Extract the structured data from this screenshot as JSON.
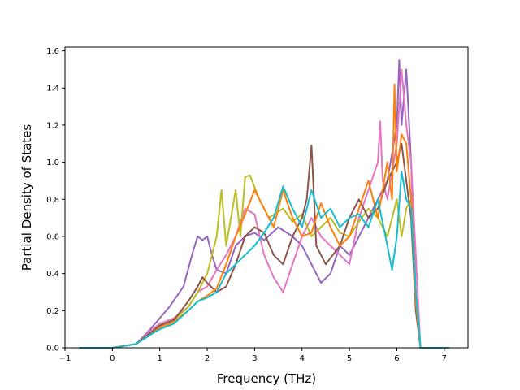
{
  "chart_data": {
    "type": "line",
    "title": "",
    "xlabel": "Frequency (THz)",
    "ylabel": "Partial Density of States",
    "xlim": [
      -1.0,
      7.5
    ],
    "ylim": [
      0.0,
      1.62
    ],
    "xticks": [
      -1,
      0,
      1,
      2,
      3,
      4,
      5,
      6,
      7
    ],
    "xtick_labels": [
      "−1",
      "0",
      "1",
      "2",
      "3",
      "4",
      "5",
      "6",
      "7"
    ],
    "yticks": [
      0.0,
      0.2,
      0.4,
      0.6,
      0.8,
      1.0,
      1.2,
      1.4,
      1.6
    ],
    "ytick_labels": [
      "0.0",
      "0.2",
      "0.4",
      "0.6",
      "0.8",
      "1.0",
      "1.2",
      "1.4",
      "1.6"
    ],
    "grid": false,
    "legend": "none",
    "series": [
      {
        "color": "#9467bd",
        "x": [
          -0.7,
          0.0,
          0.5,
          0.8,
          1.0,
          1.2,
          1.5,
          1.7,
          1.8,
          1.9,
          2.0,
          2.1,
          2.2,
          2.4,
          2.6,
          2.8,
          3.0,
          3.2,
          3.5,
          3.8,
          4.0,
          4.2,
          4.4,
          4.6,
          4.8,
          5.0,
          5.2,
          5.4,
          5.6,
          5.8,
          6.0,
          6.05,
          6.1,
          6.2,
          6.3,
          6.4,
          6.5,
          6.6,
          7.1
        ],
        "y": [
          0.0,
          0.0,
          0.02,
          0.1,
          0.16,
          0.22,
          0.33,
          0.52,
          0.6,
          0.58,
          0.6,
          0.5,
          0.42,
          0.4,
          0.55,
          0.6,
          0.62,
          0.58,
          0.65,
          0.6,
          0.55,
          0.45,
          0.35,
          0.4,
          0.55,
          0.5,
          0.6,
          0.7,
          0.8,
          0.9,
          1.2,
          1.55,
          1.2,
          1.5,
          1.0,
          0.3,
          0.0,
          0.0,
          0.0
        ]
      },
      {
        "color": "#e377c2",
        "x": [
          -0.7,
          0.0,
          0.5,
          0.8,
          1.0,
          1.3,
          1.6,
          1.8,
          2.0,
          2.2,
          2.4,
          2.6,
          2.8,
          3.0,
          3.2,
          3.4,
          3.6,
          3.8,
          4.0,
          4.2,
          4.4,
          4.6,
          4.8,
          5.0,
          5.2,
          5.4,
          5.6,
          5.65,
          5.7,
          5.8,
          6.0,
          6.1,
          6.2,
          6.3,
          6.4,
          6.5,
          6.6,
          7.1
        ],
        "y": [
          0.0,
          0.0,
          0.02,
          0.09,
          0.13,
          0.16,
          0.22,
          0.3,
          0.33,
          0.42,
          0.5,
          0.6,
          0.75,
          0.72,
          0.5,
          0.38,
          0.3,
          0.45,
          0.6,
          0.7,
          0.6,
          0.55,
          0.5,
          0.45,
          0.7,
          0.85,
          1.0,
          1.22,
          0.9,
          0.8,
          1.1,
          1.5,
          1.2,
          1.0,
          0.5,
          0.0,
          0.0,
          0.0
        ]
      },
      {
        "color": "#bcbd22",
        "x": [
          -0.7,
          0.0,
          0.5,
          0.8,
          1.0,
          1.3,
          1.6,
          1.8,
          2.0,
          2.2,
          2.3,
          2.4,
          2.6,
          2.7,
          2.8,
          2.9,
          3.1,
          3.3,
          3.6,
          3.8,
          4.0,
          4.2,
          4.4,
          4.6,
          4.8,
          5.0,
          5.2,
          5.4,
          5.6,
          5.8,
          6.0,
          6.1,
          6.2,
          6.3,
          6.4,
          6.5,
          6.6,
          7.1
        ],
        "y": [
          0.0,
          0.0,
          0.02,
          0.08,
          0.12,
          0.15,
          0.22,
          0.3,
          0.4,
          0.6,
          0.85,
          0.55,
          0.85,
          0.6,
          0.92,
          0.93,
          0.8,
          0.7,
          0.75,
          0.68,
          0.72,
          0.6,
          0.65,
          0.7,
          0.62,
          0.6,
          0.68,
          0.75,
          0.7,
          0.6,
          0.8,
          0.6,
          0.75,
          0.8,
          0.3,
          0.0,
          0.0,
          0.0
        ]
      },
      {
        "color": "#8c564b",
        "x": [
          -0.7,
          0.0,
          0.5,
          0.8,
          1.0,
          1.3,
          1.6,
          1.8,
          1.9,
          2.0,
          2.2,
          2.4,
          2.6,
          2.8,
          3.0,
          3.2,
          3.4,
          3.6,
          3.8,
          4.0,
          4.1,
          4.2,
          4.3,
          4.5,
          4.8,
          5.0,
          5.2,
          5.4,
          5.6,
          5.8,
          6.0,
          6.1,
          6.2,
          6.3,
          6.4,
          6.5,
          6.6,
          7.1
        ],
        "y": [
          0.0,
          0.0,
          0.02,
          0.08,
          0.12,
          0.15,
          0.25,
          0.33,
          0.38,
          0.35,
          0.3,
          0.33,
          0.45,
          0.6,
          0.65,
          0.62,
          0.5,
          0.45,
          0.6,
          0.7,
          0.8,
          1.09,
          0.55,
          0.45,
          0.55,
          0.7,
          0.8,
          0.7,
          0.75,
          0.9,
          1.0,
          1.1,
          0.9,
          0.7,
          0.2,
          0.0,
          0.0,
          0.0
        ]
      },
      {
        "color": "#ff7f0e",
        "x": [
          -0.7,
          0.0,
          0.5,
          0.8,
          1.0,
          1.3,
          1.6,
          1.8,
          2.0,
          2.2,
          2.4,
          2.6,
          2.8,
          3.0,
          3.2,
          3.4,
          3.6,
          3.8,
          4.0,
          4.2,
          4.4,
          4.6,
          4.8,
          5.0,
          5.2,
          5.4,
          5.6,
          5.8,
          5.9,
          5.95,
          6.0,
          6.1,
          6.2,
          6.3,
          6.4,
          6.5,
          6.6,
          7.1
        ],
        "y": [
          0.0,
          0.0,
          0.02,
          0.07,
          0.11,
          0.14,
          0.2,
          0.25,
          0.28,
          0.32,
          0.45,
          0.6,
          0.72,
          0.85,
          0.75,
          0.65,
          0.85,
          0.7,
          0.6,
          0.62,
          0.78,
          0.65,
          0.55,
          0.6,
          0.75,
          0.9,
          0.7,
          1.0,
          0.8,
          1.42,
          0.95,
          1.15,
          1.1,
          0.8,
          0.25,
          0.0,
          0.0,
          0.0
        ]
      },
      {
        "color": "#17becf",
        "x": [
          -0.7,
          0.0,
          0.5,
          0.8,
          1.0,
          1.3,
          1.6,
          1.8,
          2.0,
          2.2,
          2.4,
          2.6,
          2.8,
          3.0,
          3.2,
          3.4,
          3.6,
          3.8,
          4.0,
          4.2,
          4.4,
          4.6,
          4.8,
          5.0,
          5.2,
          5.4,
          5.6,
          5.8,
          5.9,
          6.0,
          6.1,
          6.2,
          6.3,
          6.4,
          6.5,
          6.6,
          7.1
        ],
        "y": [
          0.0,
          0.0,
          0.02,
          0.07,
          0.1,
          0.13,
          0.2,
          0.25,
          0.27,
          0.3,
          0.4,
          0.45,
          0.5,
          0.55,
          0.62,
          0.7,
          0.87,
          0.75,
          0.65,
          0.85,
          0.7,
          0.75,
          0.65,
          0.7,
          0.72,
          0.65,
          0.8,
          0.55,
          0.42,
          0.6,
          0.95,
          0.8,
          0.75,
          0.3,
          0.0,
          0.0,
          0.0
        ]
      }
    ]
  }
}
